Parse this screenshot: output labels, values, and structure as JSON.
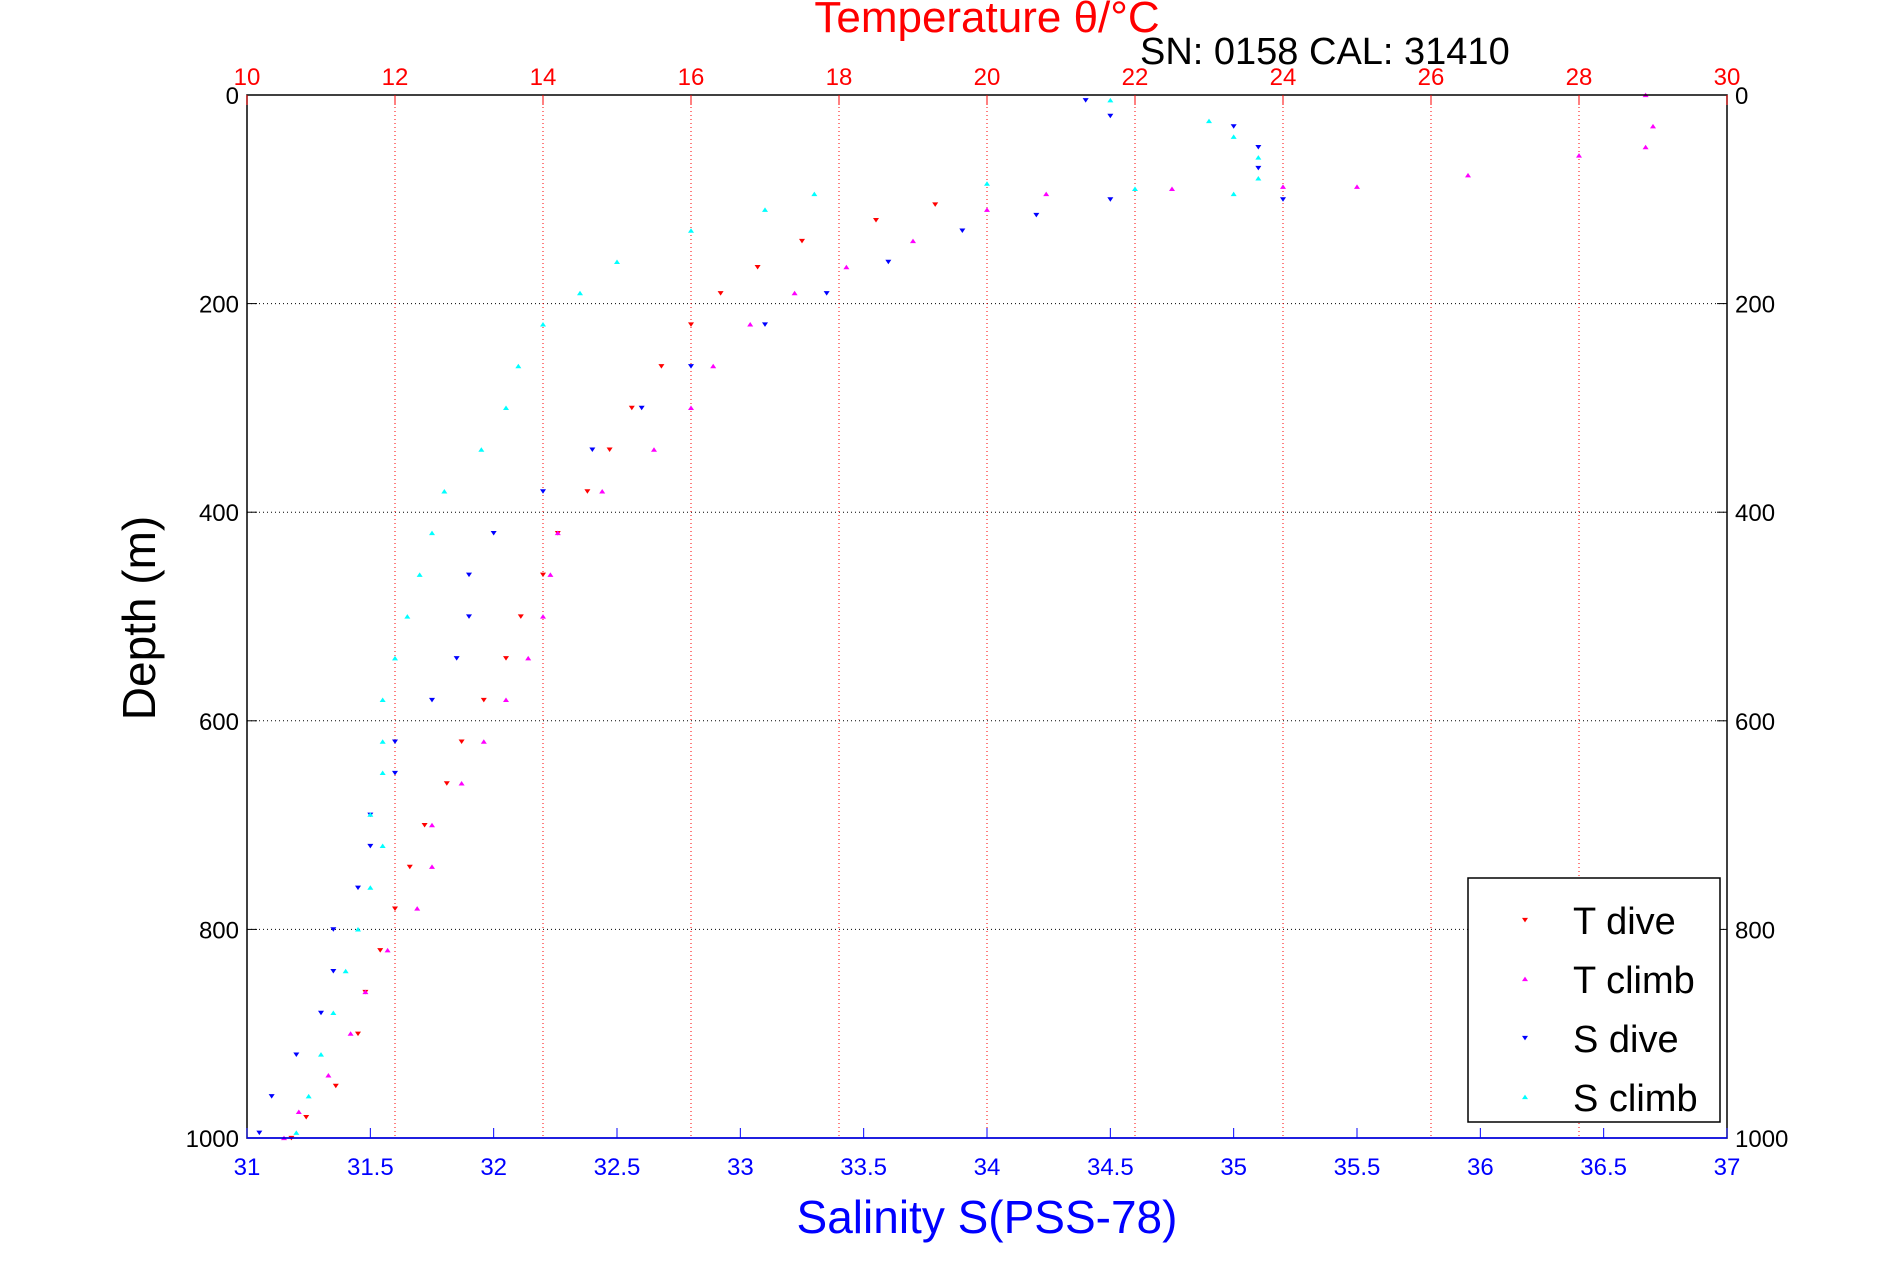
{
  "chart_data": {
    "type": "scatter",
    "title": "Temperature θ/°C",
    "subtitle": "SN: 0158  CAL: 31410",
    "ylabel": "Depth (m)",
    "xlabel": "Salinity S(PSS-78)",
    "y_axis": {
      "range": [
        0,
        1000
      ],
      "reversed": true,
      "ticks": [
        "0",
        "200",
        "400",
        "600",
        "800",
        "1000"
      ],
      "grid": true
    },
    "x_bottom_axis": {
      "label": "Salinity S(PSS-78)",
      "range": [
        31,
        37
      ],
      "ticks": [
        "31",
        "31.5",
        "32",
        "32.5",
        "33",
        "33.5",
        "34",
        "34.5",
        "35",
        "35.5",
        "36",
        "36.5",
        "37"
      ],
      "color": "#0000ff"
    },
    "x_top_axis": {
      "label": "Temperature θ/°C",
      "range": [
        10,
        30
      ],
      "ticks": [
        "10",
        "12",
        "14",
        "16",
        "18",
        "20",
        "22",
        "24",
        "26",
        "28",
        "30"
      ],
      "color": "#ff0000",
      "grid": true
    },
    "legend": {
      "placement": "bottom-right"
    },
    "series": [
      {
        "name": "T dive",
        "axis": "temperature",
        "color": "#ff0000",
        "marker": "triangle-down",
        "points": [
          [
            10.6,
            1000
          ],
          [
            10.8,
            980
          ],
          [
            11.2,
            950
          ],
          [
            11.5,
            900
          ],
          [
            11.6,
            860
          ],
          [
            11.8,
            820
          ],
          [
            12,
            780
          ],
          [
            12.2,
            740
          ],
          [
            12.4,
            700
          ],
          [
            12.7,
            660
          ],
          [
            12.9,
            620
          ],
          [
            13.2,
            580
          ],
          [
            13.5,
            540
          ],
          [
            13.7,
            500
          ],
          [
            14,
            460
          ],
          [
            14.2,
            420
          ],
          [
            14.6,
            380
          ],
          [
            14.9,
            340
          ],
          [
            15.2,
            300
          ],
          [
            15.6,
            260
          ],
          [
            16,
            220
          ],
          [
            16.4,
            190
          ],
          [
            16.9,
            165
          ],
          [
            17.5,
            140
          ],
          [
            18.5,
            120
          ],
          [
            19.3,
            105
          ]
        ]
      },
      {
        "name": "T climb",
        "axis": "temperature",
        "color": "#ff00ff",
        "marker": "triangle-up",
        "points": [
          [
            10.5,
            1000
          ],
          [
            10.7,
            975
          ],
          [
            11.1,
            940
          ],
          [
            11.4,
            900
          ],
          [
            11.6,
            860
          ],
          [
            11.9,
            820
          ],
          [
            12.3,
            780
          ],
          [
            12.5,
            740
          ],
          [
            12.5,
            700
          ],
          [
            12.9,
            660
          ],
          [
            13.2,
            620
          ],
          [
            13.5,
            580
          ],
          [
            13.8,
            540
          ],
          [
            14,
            500
          ],
          [
            14.1,
            460
          ],
          [
            14.2,
            420
          ],
          [
            14.8,
            380
          ],
          [
            15.5,
            340
          ],
          [
            16,
            300
          ],
          [
            16.3,
            260
          ],
          [
            16.8,
            220
          ],
          [
            17.4,
            190
          ],
          [
            18.1,
            165
          ],
          [
            19,
            140
          ],
          [
            20,
            110
          ],
          [
            20.8,
            95
          ],
          [
            22.5,
            90
          ],
          [
            24,
            88
          ],
          [
            25,
            88
          ],
          [
            26.5,
            77
          ],
          [
            28,
            58
          ],
          [
            28.9,
            50
          ],
          [
            29,
            30
          ],
          [
            28.9,
            0
          ]
        ]
      },
      {
        "name": "S dive",
        "axis": "salinity",
        "color": "#0000ff",
        "marker": "triangle-down",
        "points": [
          [
            31.05,
            995
          ],
          [
            31.1,
            960
          ],
          [
            31.2,
            920
          ],
          [
            31.3,
            880
          ],
          [
            31.35,
            840
          ],
          [
            31.35,
            800
          ],
          [
            31.45,
            760
          ],
          [
            31.5,
            720
          ],
          [
            31.5,
            690
          ],
          [
            31.6,
            650
          ],
          [
            31.6,
            620
          ],
          [
            31.75,
            580
          ],
          [
            31.85,
            540
          ],
          [
            31.9,
            500
          ],
          [
            31.9,
            460
          ],
          [
            32.0,
            420
          ],
          [
            32.2,
            380
          ],
          [
            32.4,
            340
          ],
          [
            32.6,
            300
          ],
          [
            32.8,
            260
          ],
          [
            33.1,
            220
          ],
          [
            33.35,
            190
          ],
          [
            33.6,
            160
          ],
          [
            33.9,
            130
          ],
          [
            34.2,
            115
          ],
          [
            34.5,
            100
          ],
          [
            35.2,
            100
          ],
          [
            35.1,
            70
          ],
          [
            35.1,
            50
          ],
          [
            35.0,
            30
          ],
          [
            34.5,
            20
          ],
          [
            34.4,
            5
          ]
        ]
      },
      {
        "name": "S climb",
        "axis": "salinity",
        "color": "#00ffff",
        "marker": "triangle-up",
        "points": [
          [
            31.2,
            995
          ],
          [
            31.25,
            960
          ],
          [
            31.3,
            920
          ],
          [
            31.35,
            880
          ],
          [
            31.4,
            840
          ],
          [
            31.45,
            800
          ],
          [
            31.5,
            760
          ],
          [
            31.55,
            720
          ],
          [
            31.5,
            690
          ],
          [
            31.55,
            650
          ],
          [
            31.55,
            620
          ],
          [
            31.55,
            580
          ],
          [
            31.6,
            540
          ],
          [
            31.65,
            500
          ],
          [
            31.7,
            460
          ],
          [
            31.75,
            420
          ],
          [
            31.8,
            380
          ],
          [
            31.95,
            340
          ],
          [
            32.05,
            300
          ],
          [
            32.1,
            260
          ],
          [
            32.2,
            220
          ],
          [
            32.35,
            190
          ],
          [
            32.5,
            160
          ],
          [
            32.8,
            130
          ],
          [
            33.1,
            110
          ],
          [
            33.3,
            95
          ],
          [
            34,
            85
          ],
          [
            34.6,
            90
          ],
          [
            35.0,
            95
          ],
          [
            35.1,
            80
          ],
          [
            35.1,
            60
          ],
          [
            35.0,
            40
          ],
          [
            34.9,
            25
          ],
          [
            34.5,
            5
          ]
        ]
      }
    ]
  }
}
